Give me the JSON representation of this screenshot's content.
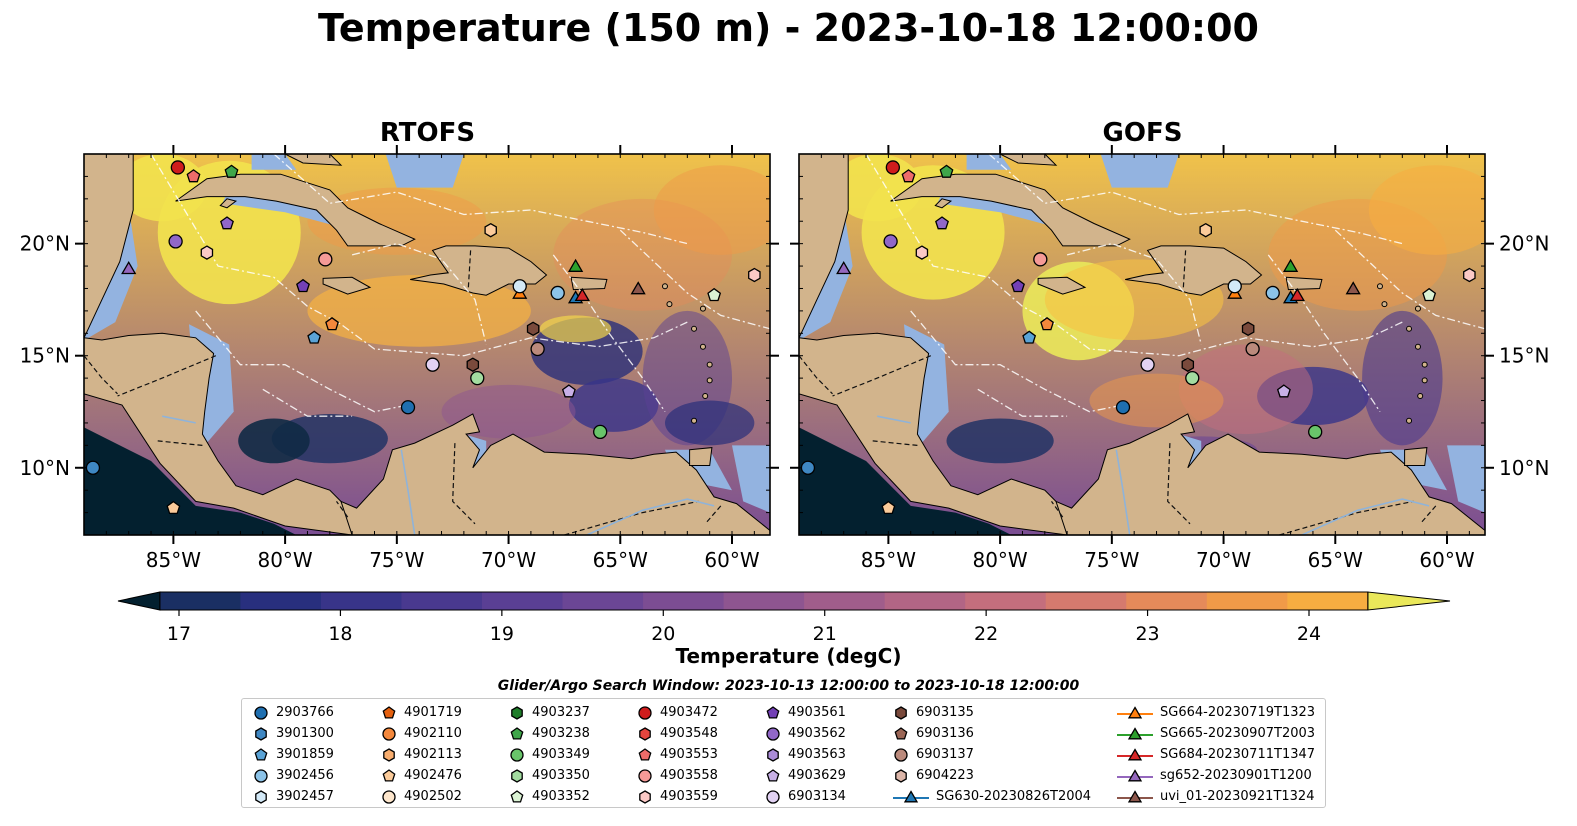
{
  "figure": {
    "title": "Temperature (150 m) - 2023-10-18 12:00:00"
  },
  "maps": [
    {
      "title": "RTOFS",
      "variant": "rtofs"
    },
    {
      "title": "GOFS",
      "variant": "gofs"
    }
  ],
  "axes": {
    "x_ticks": [
      "85°W",
      "80°W",
      "75°W",
      "70°W",
      "65°W",
      "60°W"
    ],
    "y_ticks": [
      "20°N",
      "15°N",
      "10°N"
    ],
    "x_tick_values": [
      -85,
      -80,
      -75,
      -70,
      -65,
      -60
    ],
    "y_tick_values": [
      20,
      15,
      10
    ],
    "lon_range": [
      -89,
      -58.3
    ],
    "lat_range": [
      7,
      24
    ]
  },
  "colorbar": {
    "label": "Temperature (degC)",
    "ticks": [
      "17",
      "18",
      "19",
      "20",
      "21",
      "22",
      "23",
      "24"
    ],
    "tick_values": [
      17,
      18,
      19,
      20,
      21,
      22,
      23,
      24
    ],
    "range": [
      16.5,
      25
    ],
    "extend": "both",
    "colors": [
      "#03202f",
      "#0f2a45",
      "#1a2f63",
      "#282f7e",
      "#383489",
      "#49398f",
      "#5a3f94",
      "#6b4695",
      "#7c4d93",
      "#8e5590",
      "#a05d8b",
      "#b26585",
      "#c46e7d",
      "#d57a6e",
      "#e58a5a",
      "#f09a48",
      "#f6ad41",
      "#f6c142",
      "#f2d54c",
      "#eae85a"
    ]
  },
  "legend": {
    "title": "Glider/Argo Search Window: 2023-10-13 12:00:00 to 2023-10-18 12:00:00",
    "items": [
      {
        "label": "2903766",
        "shape": "circle",
        "color": "#1f6fb0"
      },
      {
        "label": "3901300",
        "shape": "hexagon",
        "color": "#3f87c2"
      },
      {
        "label": "3901859",
        "shape": "pentagon",
        "color": "#5aa3d6"
      },
      {
        "label": "3902456",
        "shape": "circle",
        "color": "#8cc3e8"
      },
      {
        "label": "3902457",
        "shape": "hexagon",
        "color": "#d3e9f7"
      },
      {
        "label": "4901719",
        "shape": "pentagon",
        "color": "#e5600e"
      },
      {
        "label": "4902110",
        "shape": "circle",
        "color": "#f4883c"
      },
      {
        "label": "4902113",
        "shape": "hexagon",
        "color": "#f8ad6e"
      },
      {
        "label": "4902476",
        "shape": "pentagon",
        "color": "#fbcb9a"
      },
      {
        "label": "4902502",
        "shape": "circle",
        "color": "#fde6cc"
      },
      {
        "label": "4903237",
        "shape": "hexagon",
        "color": "#1f7d2a"
      },
      {
        "label": "4903238",
        "shape": "pentagon",
        "color": "#3fa64a"
      },
      {
        "label": "4903349",
        "shape": "circle",
        "color": "#69c46a"
      },
      {
        "label": "4903350",
        "shape": "hexagon",
        "color": "#a3dca0"
      },
      {
        "label": "4903352",
        "shape": "pentagon",
        "color": "#dbf3d4"
      },
      {
        "label": "4903472",
        "shape": "circle",
        "color": "#cf1c1c"
      },
      {
        "label": "4903548",
        "shape": "hexagon",
        "color": "#e3453e"
      },
      {
        "label": "4903553",
        "shape": "pentagon",
        "color": "#ee6c6a"
      },
      {
        "label": "4903558",
        "shape": "circle",
        "color": "#f59a97"
      },
      {
        "label": "4903559",
        "shape": "hexagon",
        "color": "#fbc9c6"
      },
      {
        "label": "4903561",
        "shape": "pentagon",
        "color": "#7340b6"
      },
      {
        "label": "4903562",
        "shape": "circle",
        "color": "#9167c8"
      },
      {
        "label": "4903563",
        "shape": "hexagon",
        "color": "#ab8cd8"
      },
      {
        "label": "4903629",
        "shape": "pentagon",
        "color": "#c8b0e6"
      },
      {
        "label": "6903134",
        "shape": "circle",
        "color": "#e2d2f3"
      },
      {
        "label": "6903135",
        "shape": "hexagon",
        "color": "#7a4a3c"
      },
      {
        "label": "6903136",
        "shape": "pentagon",
        "color": "#9b6656"
      },
      {
        "label": "6903137",
        "shape": "circle",
        "color": "#bb8a7c"
      },
      {
        "label": "6904223",
        "shape": "hexagon",
        "color": "#dcb6a9"
      },
      {
        "label": "SG630-20230826T2004",
        "shape": "triangle",
        "color": "#1f77b4"
      },
      {
        "label": "SG664-20230719T1323",
        "shape": "triangle",
        "color": "#ff7f0e"
      },
      {
        "label": "SG665-20230907T2003",
        "shape": "triangle",
        "color": "#2ca02c"
      },
      {
        "label": "SG684-20230711T1347",
        "shape": "triangle",
        "color": "#d62728"
      },
      {
        "label": "sg652-20230901T1200",
        "shape": "triangle",
        "color": "#9467bd"
      },
      {
        "label": "uvi_01-20230921T1324",
        "shape": "triangle",
        "color": "#8c564b"
      }
    ]
  },
  "markers": [
    {
      "lon": -84.8,
      "lat": 23.4,
      "shape": "circle",
      "color": "#cf1c1c"
    },
    {
      "lon": -84.1,
      "lat": 23.0,
      "shape": "pentagon",
      "color": "#ee6c6a"
    },
    {
      "lon": -82.4,
      "lat": 23.2,
      "shape": "pentagon",
      "color": "#3fa64a"
    },
    {
      "lon": -82.6,
      "lat": 20.9,
      "shape": "pentagon",
      "color": "#9167c8"
    },
    {
      "lon": -84.9,
      "lat": 20.1,
      "shape": "circle",
      "color": "#9167c8"
    },
    {
      "lon": -83.5,
      "lat": 19.6,
      "shape": "hexagon",
      "color": "#fbc9c6"
    },
    {
      "lon": -87.0,
      "lat": 18.9,
      "shape": "triangle",
      "color": "#9467bd"
    },
    {
      "lon": -78.2,
      "lat": 19.3,
      "shape": "circle",
      "color": "#f59a97"
    },
    {
      "lon": -79.2,
      "lat": 18.1,
      "shape": "pentagon",
      "color": "#7340b6"
    },
    {
      "lon": -77.9,
      "lat": 16.4,
      "shape": "pentagon",
      "color": "#f4883c"
    },
    {
      "lon": -78.7,
      "lat": 15.8,
      "shape": "pentagon",
      "color": "#5aa3d6"
    },
    {
      "lon": -70.8,
      "lat": 20.6,
      "shape": "hexagon",
      "color": "#fbcb9a"
    },
    {
      "lon": -69.5,
      "lat": 17.8,
      "shape": "triangle",
      "color": "#ff7f0e"
    },
    {
      "lon": -69.5,
      "lat": 18.1,
      "shape": "circle",
      "color": "#d3e9f7"
    },
    {
      "lon": -67.8,
      "lat": 17.8,
      "shape": "circle",
      "color": "#8cc3e8"
    },
    {
      "lon": -67.0,
      "lat": 17.6,
      "shape": "triangle",
      "color": "#1f77b4"
    },
    {
      "lon": -66.7,
      "lat": 17.7,
      "shape": "triangle",
      "color": "#d62728"
    },
    {
      "lon": -67.0,
      "lat": 19.0,
      "shape": "triangle",
      "color": "#2ca02c"
    },
    {
      "lon": -64.2,
      "lat": 18.0,
      "shape": "triangle",
      "color": "#8c564b"
    },
    {
      "lon": -60.8,
      "lat": 17.7,
      "shape": "pentagon",
      "color": "#dbf3d4"
    },
    {
      "lon": -59.0,
      "lat": 18.6,
      "shape": "hexagon",
      "color": "#fbc9c6"
    },
    {
      "lon": -68.9,
      "lat": 16.2,
      "shape": "hexagon",
      "color": "#7a4a3c"
    },
    {
      "lon": -68.7,
      "lat": 15.3,
      "shape": "circle",
      "color": "#bb8a7c"
    },
    {
      "lon": -71.6,
      "lat": 14.6,
      "shape": "hexagon",
      "color": "#7a4a3c"
    },
    {
      "lon": -71.4,
      "lat": 14.0,
      "shape": "circle",
      "color": "#a3dca0"
    },
    {
      "lon": -73.4,
      "lat": 14.6,
      "shape": "circle",
      "color": "#e2d2f3"
    },
    {
      "lon": -67.3,
      "lat": 13.4,
      "shape": "pentagon",
      "color": "#c8b0e6"
    },
    {
      "lon": -74.5,
      "lat": 12.7,
      "shape": "circle",
      "color": "#1f6fb0"
    },
    {
      "lon": -65.9,
      "lat": 11.6,
      "shape": "circle",
      "color": "#69c46a"
    },
    {
      "lon": -88.6,
      "lat": 10.0,
      "shape": "circle",
      "color": "#3f87c2"
    },
    {
      "lon": -85.0,
      "lat": 8.2,
      "shape": "pentagon",
      "color": "#fbcb9a"
    }
  ]
}
